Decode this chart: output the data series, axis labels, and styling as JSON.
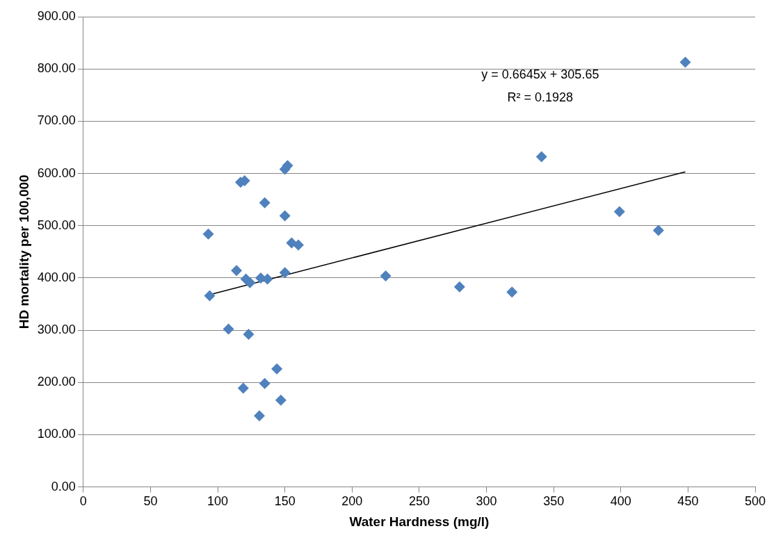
{
  "chart_data": {
    "type": "scatter",
    "xlabel": "Water Hardness (mg/l)",
    "ylabel": "HD mortality per 100,000",
    "xlim": [
      0,
      500
    ],
    "xticks": [
      0,
      50,
      100,
      150,
      200,
      250,
      300,
      350,
      400,
      450,
      500
    ],
    "ylim": [
      0,
      900
    ],
    "yticks": [
      {
        "value": 0,
        "label": "0.00"
      },
      {
        "value": 100,
        "label": "100.00"
      },
      {
        "value": 200,
        "label": "200.00"
      },
      {
        "value": 300,
        "label": "300.00"
      },
      {
        "value": 400,
        "label": "400.00"
      },
      {
        "value": 500,
        "label": "500.00"
      },
      {
        "value": 600,
        "label": "600.00"
      },
      {
        "value": 700,
        "label": "700.00"
      },
      {
        "value": 800,
        "label": "800.00"
      },
      {
        "value": 900,
        "label": "900.00"
      }
    ],
    "grid": "y",
    "legend": false,
    "marker": "diamond",
    "annotations": [
      "y = 0.6645x + 305.65",
      "R² = 0.1928"
    ],
    "series": [
      {
        "color": "#4f81bd",
        "x": [
          152,
          150,
          117,
          120,
          135,
          150,
          93,
          155,
          160,
          114,
          121,
          124,
          132,
          137,
          150,
          94,
          108,
          123,
          144,
          119,
          135,
          147,
          131,
          225,
          280,
          319,
          341,
          399,
          428,
          448
        ],
        "values": [
          615,
          608,
          583,
          586,
          544,
          519,
          484,
          467,
          463,
          414,
          398,
          391,
          400,
          398,
          410,
          366,
          302,
          292,
          226,
          189,
          198,
          166,
          136,
          404,
          383,
          373,
          632,
          527,
          491,
          813
        ]
      },
      {
        "type": "line",
        "color": "#000000",
        "marker": "none",
        "x": [
          94,
          448
        ],
        "values": [
          368,
          603
        ]
      }
    ]
  }
}
